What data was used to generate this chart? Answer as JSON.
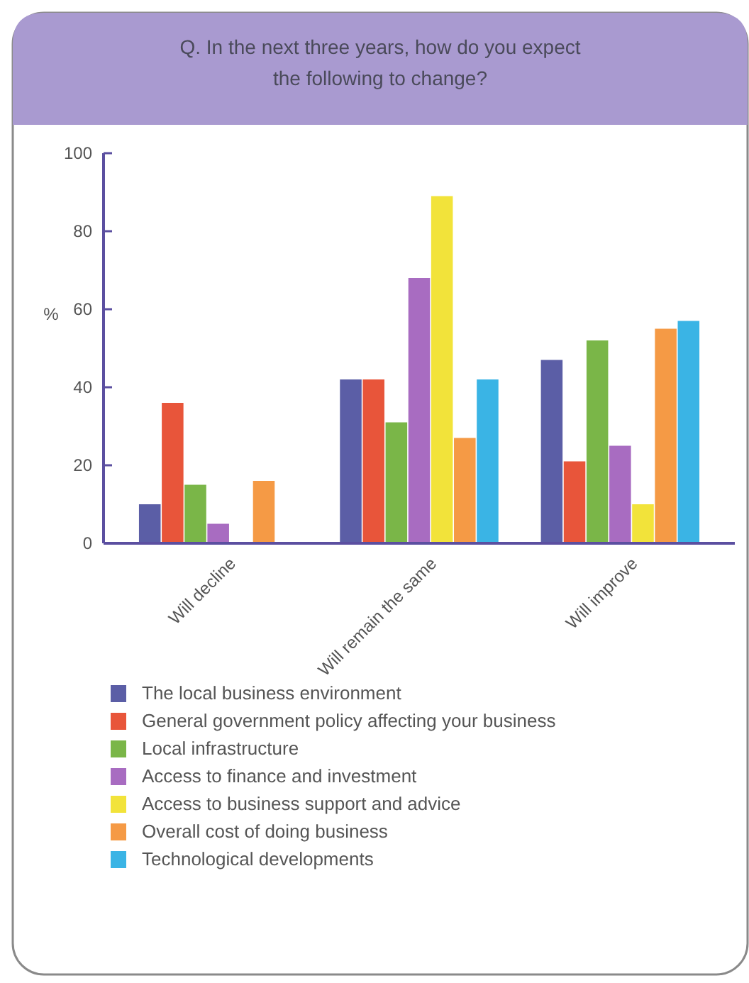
{
  "chart_data": {
    "type": "bar",
    "title": "Q.  In the next three years, how do you expect the following to change?",
    "ylabel": "%",
    "categories": [
      "Will decline",
      "Will remain the same",
      "Will improve"
    ],
    "series": [
      {
        "name": "The local business environment",
        "color": "#5b5ea6",
        "values": [
          10,
          42,
          47
        ]
      },
      {
        "name": "General government policy affecting your business",
        "color": "#e8553a",
        "values": [
          36,
          42,
          21
        ]
      },
      {
        "name": "Local infrastructure",
        "color": "#7ab648",
        "values": [
          15,
          31,
          52
        ]
      },
      {
        "name": "Access to finance and investment",
        "color": "#a86cc1",
        "values": [
          5,
          68,
          25
        ]
      },
      {
        "name": "Access to business support and advice",
        "color": "#f2e33a",
        "values": [
          0,
          89,
          10
        ]
      },
      {
        "name": "Overall cost of doing business",
        "color": "#f59a45",
        "values": [
          16,
          27,
          55
        ]
      },
      {
        "name": "Technological developments",
        "color": "#3ab4e5",
        "values": [
          0,
          42,
          57
        ]
      }
    ],
    "ylim": [
      0,
      100
    ],
    "yticks": [
      0,
      20,
      40,
      60,
      80,
      100
    ],
    "legend": "bottom",
    "grid": false
  }
}
